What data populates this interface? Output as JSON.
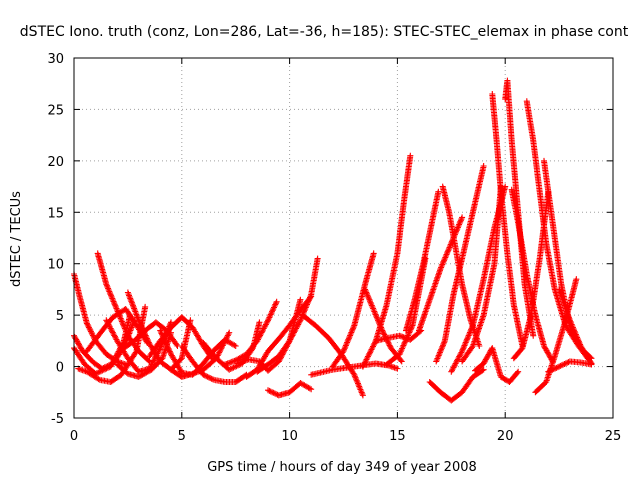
{
  "chart_data": {
    "type": "scatter",
    "title": "dSTEC Iono. truth (conz, Lon=286, Lat=-36, h=185): STEC-STEC_elemax in phase cont",
    "xlabel": "GPS time / hours of day 349 of year 2008",
    "ylabel": "dSTEC  / TECUs",
    "xlim": [
      0,
      25
    ],
    "ylim": [
      -5,
      30
    ],
    "xticks": [
      0,
      5,
      10,
      15,
      20,
      25
    ],
    "yticks": [
      -5,
      0,
      5,
      10,
      15,
      20,
      25,
      30
    ],
    "grid": true,
    "marker": "plus",
    "color": "#ff0000",
    "series": [
      {
        "x": [
          0.0,
          0.3,
          0.6,
          1.0,
          1.5,
          2.0,
          2.4
        ],
        "y": [
          9.0,
          6.5,
          4.2,
          2.5,
          1.2,
          0.5,
          0.2
        ]
      },
      {
        "x": [
          0.0,
          0.4,
          0.9,
          1.3,
          1.8,
          2.3,
          2.8
        ],
        "y": [
          3.0,
          1.5,
          0.4,
          -0.2,
          0.3,
          1.8,
          4.5
        ]
      },
      {
        "x": [
          0.0,
          0.5,
          1.0,
          1.7,
          2.3,
          2.6
        ],
        "y": [
          1.8,
          0.2,
          -0.7,
          0.0,
          2.4,
          5.0
        ]
      },
      {
        "x": [
          0.2,
          0.6,
          1.2,
          1.7,
          2.2,
          2.9,
          3.3
        ],
        "y": [
          -0.2,
          -0.5,
          -1.3,
          -1.5,
          -0.8,
          1.5,
          5.8
        ]
      },
      {
        "x": [
          1.1,
          1.5,
          2.0,
          2.5,
          3.0,
          3.5
        ],
        "y": [
          11.0,
          8.0,
          5.5,
          3.0,
          1.5,
          0.5
        ]
      },
      {
        "x": [
          0.6,
          1.2,
          1.8,
          2.4,
          2.9,
          3.4
        ],
        "y": [
          1.5,
          3.2,
          4.8,
          5.6,
          4.0,
          2.3
        ]
      },
      {
        "x": [
          1.5,
          2.0,
          2.5,
          3.0,
          3.5,
          4.0,
          4.5
        ],
        "y": [
          4.5,
          2.5,
          0.8,
          -0.5,
          -0.2,
          1.8,
          4.3
        ]
      },
      {
        "x": [
          2.5,
          3.0,
          3.5,
          4.0,
          4.5,
          5.0,
          5.4
        ],
        "y": [
          7.2,
          4.5,
          2.2,
          0.5,
          -0.3,
          0.8,
          4.5
        ]
      },
      {
        "x": [
          2.0,
          2.5,
          3.0,
          3.6,
          4.1,
          4.5
        ],
        "y": [
          0.2,
          -0.7,
          -1.0,
          -0.3,
          0.8,
          3.3
        ]
      },
      {
        "x": [
          2.3,
          2.8,
          3.3,
          3.8,
          4.3,
          4.8
        ],
        "y": [
          1.8,
          2.5,
          3.5,
          4.3,
          3.5,
          2.0
        ]
      },
      {
        "x": [
          3.5,
          4.0,
          4.5,
          5.0,
          5.5,
          6.0,
          6.4
        ],
        "y": [
          1.0,
          2.5,
          3.8,
          4.8,
          3.8,
          2.0,
          0.8
        ]
      },
      {
        "x": [
          4.0,
          4.5,
          5.0,
          5.5,
          6.0,
          6.5,
          7.0,
          7.5
        ],
        "y": [
          3.5,
          1.2,
          -0.6,
          -0.8,
          0.3,
          1.6,
          2.6,
          2.0
        ]
      },
      {
        "x": [
          4.5,
          5.0,
          5.5,
          6.0,
          6.6,
          7.2
        ],
        "y": [
          -0.3,
          -1.0,
          -0.7,
          -0.3,
          0.8,
          3.3
        ]
      },
      {
        "x": [
          5.0,
          5.5,
          6.0,
          6.5,
          7.0,
          7.5,
          8.0
        ],
        "y": [
          2.0,
          0.5,
          -0.8,
          -1.3,
          -1.5,
          -1.5,
          -0.8
        ]
      },
      {
        "x": [
          6.0,
          6.6,
          7.2,
          7.8,
          8.3,
          8.6
        ],
        "y": [
          2.3,
          0.8,
          -0.3,
          0.3,
          1.8,
          4.3
        ]
      },
      {
        "x": [
          7.0,
          7.5,
          8.0,
          8.5,
          9.0,
          9.4
        ],
        "y": [
          0.2,
          0.6,
          1.2,
          2.5,
          4.5,
          6.3
        ]
      },
      {
        "x": [
          7.6,
          8.1,
          8.6,
          9.0,
          9.5,
          10.0,
          10.5
        ],
        "y": [
          0.3,
          0.7,
          0.5,
          -0.4,
          0.5,
          2.5,
          6.5
        ]
      },
      {
        "x": [
          8.0,
          8.5,
          9.0,
          9.5,
          10.0,
          10.5,
          11.0
        ],
        "y": [
          -1.0,
          -0.3,
          1.5,
          2.7,
          4.0,
          5.5,
          6.8
        ]
      },
      {
        "x": [
          8.5,
          9.0,
          9.5,
          10.0,
          10.5,
          11.0,
          11.3
        ],
        "y": [
          -0.5,
          0.2,
          1.0,
          2.5,
          4.5,
          7.0,
          10.5
        ]
      },
      {
        "x": [
          9.0,
          9.5,
          10.0,
          10.5,
          11.0
        ],
        "y": [
          -2.3,
          -2.8,
          -2.5,
          -1.6,
          -2.2
        ]
      },
      {
        "x": [
          10.6,
          11.2,
          11.8,
          12.4,
          13.0,
          13.4
        ],
        "y": [
          5.0,
          4.0,
          2.8,
          1.2,
          -0.8,
          -2.8
        ]
      },
      {
        "x": [
          11.0,
          12.0,
          13.0,
          14.0,
          14.6,
          15.0
        ],
        "y": [
          -0.8,
          -0.3,
          0.0,
          0.3,
          0.1,
          -0.2
        ]
      },
      {
        "x": [
          12.0,
          12.5,
          13.0,
          13.5,
          13.9
        ],
        "y": [
          0.0,
          1.5,
          4.0,
          8.0,
          11.0
        ]
      },
      {
        "x": [
          13.5,
          13.9,
          14.3,
          14.7,
          15.2
        ],
        "y": [
          7.5,
          5.5,
          3.5,
          1.8,
          0.5
        ]
      },
      {
        "x": [
          13.4,
          14.0,
          14.5,
          15.0,
          15.3,
          15.6
        ],
        "y": [
          0.0,
          2.5,
          6.0,
          11.0,
          16.0,
          20.5
        ]
      },
      {
        "x": [
          14.0,
          14.6,
          15.1,
          15.6,
          16.1
        ],
        "y": [
          2.5,
          2.8,
          3.0,
          2.6,
          3.5
        ]
      },
      {
        "x": [
          14.5,
          15.1,
          15.7,
          16.3
        ],
        "y": [
          0.2,
          1.2,
          4.0,
          10.5
        ]
      },
      {
        "x": [
          15.4,
          15.8,
          16.2,
          16.6,
          16.9
        ],
        "y": [
          3.5,
          6.5,
          10.0,
          14.0,
          17.0
        ]
      },
      {
        "x": [
          16.0,
          16.5,
          17.0,
          17.5,
          18.0
        ],
        "y": [
          3.5,
          6.5,
          9.5,
          12.0,
          14.5
        ]
      },
      {
        "x": [
          16.5,
          17.0,
          17.5,
          18.0,
          18.5,
          19.0
        ],
        "y": [
          -1.5,
          -2.5,
          -3.3,
          -2.5,
          -1.0,
          -0.3
        ]
      },
      {
        "x": [
          16.8,
          17.2,
          17.6,
          18.0,
          18.5,
          19.0
        ],
        "y": [
          0.5,
          2.5,
          7.0,
          10.5,
          15.0,
          19.5
        ]
      },
      {
        "x": [
          17.1,
          17.4,
          17.7,
          18.0,
          18.4,
          18.8
        ],
        "y": [
          17.5,
          15.0,
          11.5,
          8.0,
          4.5,
          2.0
        ]
      },
      {
        "x": [
          17.5,
          18.0,
          18.5,
          19.0,
          19.5,
          20.0
        ],
        "y": [
          -0.5,
          1.5,
          4.0,
          8.5,
          13.5,
          17.5
        ]
      },
      {
        "x": [
          18.0,
          18.5,
          19.0,
          19.5,
          19.8
        ],
        "y": [
          0.5,
          2.0,
          5.0,
          10.0,
          17.5
        ]
      },
      {
        "x": [
          18.6,
          19.0,
          19.4,
          19.8,
          20.2,
          20.6
        ],
        "y": [
          -0.4,
          0.3,
          1.8,
          -1.0,
          -1.5,
          -0.5
        ]
      },
      {
        "x": [
          19.4,
          19.6,
          19.8,
          20.1,
          20.4,
          20.8
        ],
        "y": [
          26.5,
          22.0,
          17.0,
          11.0,
          6.0,
          2.0
        ]
      },
      {
        "x": [
          20.0,
          20.1,
          20.3,
          20.6,
          20.9,
          21.3
        ],
        "y": [
          26.0,
          27.8,
          22.0,
          15.0,
          8.0,
          3.0
        ]
      },
      {
        "x": [
          20.3,
          20.6,
          21.0,
          21.4,
          21.8,
          22.2
        ],
        "y": [
          17.2,
          14.0,
          9.0,
          5.0,
          2.0,
          0.5
        ]
      },
      {
        "x": [
          20.4,
          20.8,
          21.2,
          21.6,
          22.0
        ],
        "y": [
          0.8,
          1.8,
          5.0,
          10.5,
          17.0
        ]
      },
      {
        "x": [
          21.0,
          21.3,
          21.6,
          21.9,
          22.3,
          22.8,
          23.4,
          24.0
        ],
        "y": [
          25.8,
          22.0,
          17.0,
          12.0,
          7.5,
          4.0,
          2.0,
          0.3
        ]
      },
      {
        "x": [
          21.8,
          22.2,
          22.6,
          23.0,
          23.5,
          24.0
        ],
        "y": [
          20.0,
          14.0,
          8.0,
          4.0,
          1.8,
          0.8
        ]
      },
      {
        "x": [
          21.4,
          21.9,
          22.3,
          22.8,
          23.3
        ],
        "y": [
          -2.5,
          -1.5,
          1.0,
          4.5,
          8.5
        ]
      },
      {
        "x": [
          22.5,
          23.0,
          23.5,
          24.0
        ],
        "y": [
          7.5,
          4.5,
          2.0,
          0.3
        ]
      },
      {
        "x": [
          22.0,
          22.5,
          23.0,
          23.5,
          24.0
        ],
        "y": [
          -0.5,
          0.0,
          0.5,
          0.4,
          0.2
        ]
      }
    ]
  }
}
